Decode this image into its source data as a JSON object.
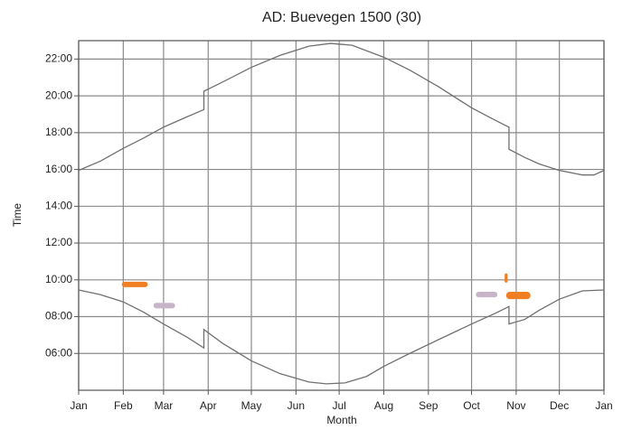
{
  "chart_data": {
    "type": "line",
    "title": "AD: Buevegen 1500 (30)",
    "x_label": "Month",
    "y_label": "Time",
    "xlim": [
      0,
      365
    ],
    "xticks": [
      {
        "value": 0,
        "label": "Jan"
      },
      {
        "value": 31,
        "label": "Feb"
      },
      {
        "value": 59,
        "label": "Mar"
      },
      {
        "value": 90,
        "label": "Apr"
      },
      {
        "value": 120,
        "label": "May"
      },
      {
        "value": 151,
        "label": "Jun"
      },
      {
        "value": 181,
        "label": "Jul"
      },
      {
        "value": 212,
        "label": "Aug"
      },
      {
        "value": 243,
        "label": "Sep"
      },
      {
        "value": 273,
        "label": "Oct"
      },
      {
        "value": 304,
        "label": "Nov"
      },
      {
        "value": 334,
        "label": "Dec"
      },
      {
        "value": 365,
        "label": "Jan"
      }
    ],
    "ylim": [
      4,
      23
    ],
    "yticks": [
      {
        "value": 6,
        "label": "06:00"
      },
      {
        "value": 8,
        "label": "08:00"
      },
      {
        "value": 10,
        "label": "10:00"
      },
      {
        "value": 12,
        "label": "12:00"
      },
      {
        "value": 14,
        "label": "14:00"
      },
      {
        "value": 16,
        "label": "16:00"
      },
      {
        "value": 18,
        "label": "18:00"
      },
      {
        "value": 20,
        "label": "20:00"
      },
      {
        "value": 22,
        "label": "22:00"
      }
    ],
    "grid": true,
    "series": [
      {
        "color": "#707070",
        "x": [
          0,
          15,
          31,
          45,
          59,
          75,
          87,
          87,
          100,
          120,
          140,
          160,
          175,
          190,
          212,
          230,
          250,
          273,
          290,
          299,
          299,
          310,
          320,
          334,
          350,
          358,
          365
        ],
        "values": [
          15.95,
          16.45,
          17.15,
          17.7,
          18.3,
          18.85,
          19.25,
          20.25,
          20.75,
          21.55,
          22.2,
          22.7,
          22.85,
          22.75,
          22.1,
          21.4,
          20.5,
          19.35,
          18.65,
          18.3,
          17.1,
          16.65,
          16.3,
          15.95,
          15.7,
          15.7,
          15.95
        ]
      },
      {
        "color": "#707070",
        "x": [
          0,
          15,
          31,
          45,
          59,
          75,
          87,
          87,
          100,
          120,
          140,
          160,
          172,
          185,
          200,
          212,
          230,
          250,
          273,
          290,
          299,
          299,
          310,
          320,
          334,
          350,
          365
        ],
        "values": [
          9.45,
          9.2,
          8.8,
          8.25,
          7.6,
          6.9,
          6.3,
          7.3,
          6.55,
          5.6,
          4.9,
          4.45,
          4.35,
          4.4,
          4.75,
          5.3,
          6.0,
          6.75,
          7.6,
          8.2,
          8.55,
          7.6,
          7.85,
          8.35,
          8.95,
          9.4,
          9.45
        ]
      }
    ],
    "areas": [
      {
        "color": "#f07f24",
        "x": [
          30,
          48
        ],
        "values": [
          9.6,
          9.9
        ]
      },
      {
        "color": "#c8b4c8",
        "x": [
          52,
          67
        ],
        "values": [
          8.45,
          8.75
        ]
      },
      {
        "color": "#c8b4c8",
        "x": [
          276,
          291
        ],
        "values": [
          9.05,
          9.35
        ]
      },
      {
        "color": "#f07f24",
        "x": [
          297,
          314
        ],
        "values": [
          8.95,
          9.35
        ]
      },
      {
        "color": "#f07f24",
        "x": [
          296,
          298
        ],
        "values": [
          9.85,
          10.35
        ]
      }
    ]
  }
}
